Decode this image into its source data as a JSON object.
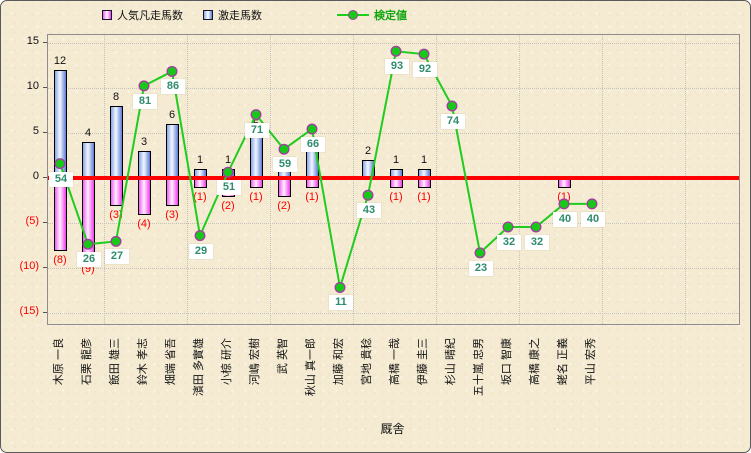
{
  "legend": {
    "items": [
      {
        "label": "人気凡走馬数",
        "key": "flop",
        "swatch": "pink-bar"
      },
      {
        "label": "激走馬数",
        "key": "surge",
        "swatch": "blue-bar"
      },
      {
        "label": "検定値",
        "key": "test-value",
        "swatch": "green-line"
      }
    ]
  },
  "axis": {
    "x_title": "厩舎",
    "y_ticks": [
      {
        "label": "15",
        "value": 15
      },
      {
        "label": "10",
        "value": 10
      },
      {
        "label": "5",
        "value": 5
      },
      {
        "label": "0",
        "value": 0
      },
      {
        "label": "(5)",
        "value": -5
      },
      {
        "label": "(10)",
        "value": -10
      },
      {
        "label": "(15)",
        "value": -15
      }
    ]
  },
  "colors": {
    "flop_bar": "#EE3EEE",
    "surge_bar": "#5C7CD6",
    "test_line": "#1FCC1F",
    "marker_fill": "#17C917",
    "marker_stroke": "#A040A0",
    "zero_line": "#FE0000",
    "negative_label": "#FE0000",
    "test_value_label": "#2E8B6E",
    "background": "#F5EBD2"
  },
  "chart_data": {
    "type": "bar+line",
    "title": "",
    "xlabel": "厩舎",
    "ylabel": "",
    "ylim": [
      -15,
      15
    ],
    "y_major": 5,
    "grid": true,
    "legend_position": "top",
    "line_value_range": [
      0,
      100
    ],
    "categories": [
      "木原 一良",
      "石栗 龍彦",
      "飯田 雄三",
      "鈴木 孝志",
      "畑端 省吾",
      "濱田 多實雄",
      "小椋 研介",
      "河嶋 宏樹",
      "武 英智",
      "秋山 真一郎",
      "加藤 和宏",
      "宮地 貴稔",
      "高橋 一哉",
      "伊藤 圭三",
      "杉山 晴紀",
      "五十嵐 忠男",
      "坂口 智康",
      "高橋 康之",
      "蛯名 正義",
      "平山 宏秀"
    ],
    "series": [
      {
        "name": "人気凡走馬数",
        "type": "bar",
        "direction": "negative",
        "values": [
          8,
          9,
          3,
          4,
          3,
          1,
          2,
          1,
          2,
          1,
          0,
          0,
          1,
          1,
          0,
          0,
          0,
          0,
          1,
          0
        ],
        "labels": [
          "(8)",
          "(9)",
          "(3)",
          "(4)",
          "(3)",
          "(1)",
          "(2)",
          "(1)",
          "(2)",
          "(1)",
          "",
          "",
          "(1)",
          "(1)",
          "",
          "",
          "",
          "",
          "(1)",
          ""
        ]
      },
      {
        "name": "激走馬数",
        "type": "bar",
        "direction": "positive",
        "values": [
          12,
          4,
          8,
          3,
          6,
          1,
          1,
          5,
          2,
          3,
          0,
          2,
          1,
          1,
          0,
          0,
          0,
          0,
          0,
          0
        ],
        "labels": [
          "12",
          "4",
          "8",
          "3",
          "6",
          "1",
          "1",
          "5",
          "2",
          "3",
          "",
          "2",
          "1",
          "1",
          "",
          "",
          "",
          "",
          "",
          ""
        ]
      },
      {
        "name": "検定値",
        "type": "line",
        "values": [
          54,
          26,
          27,
          81,
          86,
          29,
          51,
          71,
          59,
          66,
          11,
          43,
          93,
          92,
          74,
          23,
          32,
          32,
          40,
          40
        ],
        "labels": [
          "54",
          "26",
          "27",
          "81",
          "86",
          "29",
          "51",
          "71",
          "59",
          "66",
          "11",
          "43",
          "93",
          "92",
          "74",
          "23",
          "32",
          "32",
          "40",
          "40"
        ]
      }
    ]
  }
}
